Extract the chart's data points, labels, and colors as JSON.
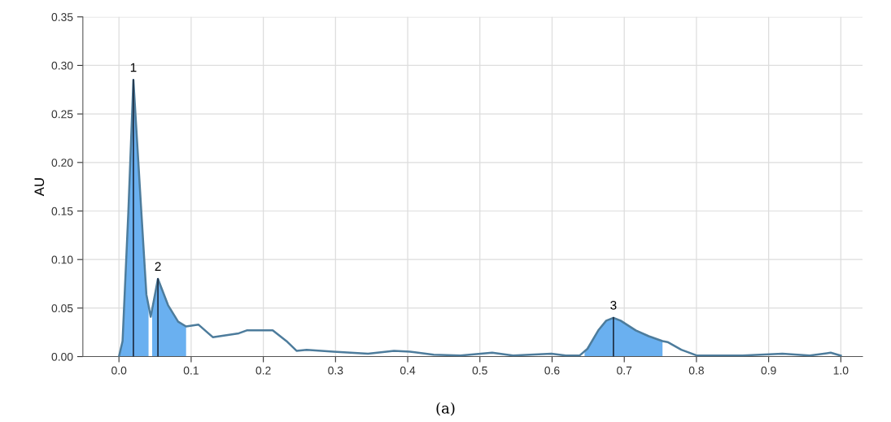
{
  "chart_data": {
    "type": "line",
    "ylabel": "AU",
    "xlim": [
      -0.05,
      1.03
    ],
    "ylim": [
      0,
      0.35
    ],
    "xticks": [
      {
        "value": 0,
        "label": "0.0"
      },
      0.1,
      0.2,
      0.3,
      0.4,
      0.5,
      0.6,
      0.7,
      0.8,
      0.9,
      {
        "value": 1,
        "label": "1.0"
      }
    ],
    "yticks": [
      {
        "value": 0,
        "label": "0.00"
      },
      {
        "value": 0.05,
        "label": "0.05"
      },
      {
        "value": 0.1,
        "label": "0.10"
      },
      {
        "value": 0.15,
        "label": "0.15"
      },
      {
        "value": 0.2,
        "label": "0.20"
      },
      {
        "value": 0.25,
        "label": "0.25"
      },
      {
        "value": 0.3,
        "label": "0.30"
      },
      {
        "value": 0.35,
        "label": "0.35"
      }
    ],
    "grid": true,
    "marker": "none",
    "line_style": "solid",
    "series": [
      {
        "type": "area",
        "color": "#6ab0f0",
        "x": [
          0,
          0.005,
          0.013,
          0.02,
          0.031,
          0.038,
          0.041
        ],
        "values": [
          0,
          0.016,
          0.149,
          0.285,
          0.149,
          0.064,
          0.048
        ]
      },
      {
        "type": "area",
        "color": "#6ab0f0",
        "x": [
          0.046,
          0.054,
          0.068,
          0.082,
          0.093
        ],
        "values": [
          0.05,
          0.08,
          0.053,
          0.036,
          0.031
        ]
      },
      {
        "type": "area",
        "color": "#6ab0f0",
        "x": [
          0.645,
          0.649,
          0.664,
          0.675,
          0.685,
          0.695,
          0.716,
          0.734,
          0.753
        ],
        "values": [
          0.004,
          0.008,
          0.027,
          0.037,
          0.04,
          0.037,
          0.027,
          0.021,
          0.016
        ]
      },
      {
        "color": "#4d7c9c",
        "x": [
          0,
          0.005,
          0.013,
          0.02,
          0.031,
          0.038,
          0.044,
          0.054,
          0.068,
          0.082,
          0.093,
          0.11,
          0.13,
          0.166,
          0.177,
          0.213,
          0.232,
          0.246,
          0.26,
          0.297,
          0.345,
          0.381,
          0.403,
          0.436,
          0.473,
          0.517,
          0.546,
          0.599,
          0.619,
          0.638,
          0.649,
          0.664,
          0.675,
          0.685,
          0.695,
          0.716,
          0.734,
          0.753,
          0.76,
          0.779,
          0.801,
          0.864,
          0.919,
          0.957,
          0.986,
          1.0
        ],
        "values": [
          0,
          0.016,
          0.149,
          0.285,
          0.149,
          0.064,
          0.041,
          0.08,
          0.053,
          0.036,
          0.031,
          0.033,
          0.02,
          0.024,
          0.027,
          0.027,
          0.016,
          0.006,
          0.007,
          0.005,
          0.003,
          0.006,
          0.005,
          0.002,
          0.001,
          0.004,
          0.001,
          0.003,
          0.001,
          0.001,
          0.008,
          0.027,
          0.037,
          0.04,
          0.037,
          0.027,
          0.021,
          0.016,
          0.015,
          0.007,
          0.001,
          0.001,
          0.003,
          0.001,
          0.004,
          0.001
        ]
      },
      {
        "color": "#1c2c40",
        "x": [
          0.02,
          0.02
        ],
        "values": [
          0,
          0.285
        ]
      },
      {
        "color": "#1c2c40",
        "x": [
          0.054,
          0.054
        ],
        "values": [
          0,
          0.08
        ]
      },
      {
        "color": "#1c2c40",
        "x": [
          0.685,
          0.685
        ],
        "values": [
          0,
          0.04
        ]
      }
    ],
    "annotations": [
      {
        "text": "1",
        "x": 0.02,
        "y": 0.285
      },
      {
        "text": "2",
        "x": 0.054,
        "y": 0.08
      },
      {
        "text": "3",
        "x": 0.685,
        "y": 0.04
      },
      "(a)"
    ]
  }
}
